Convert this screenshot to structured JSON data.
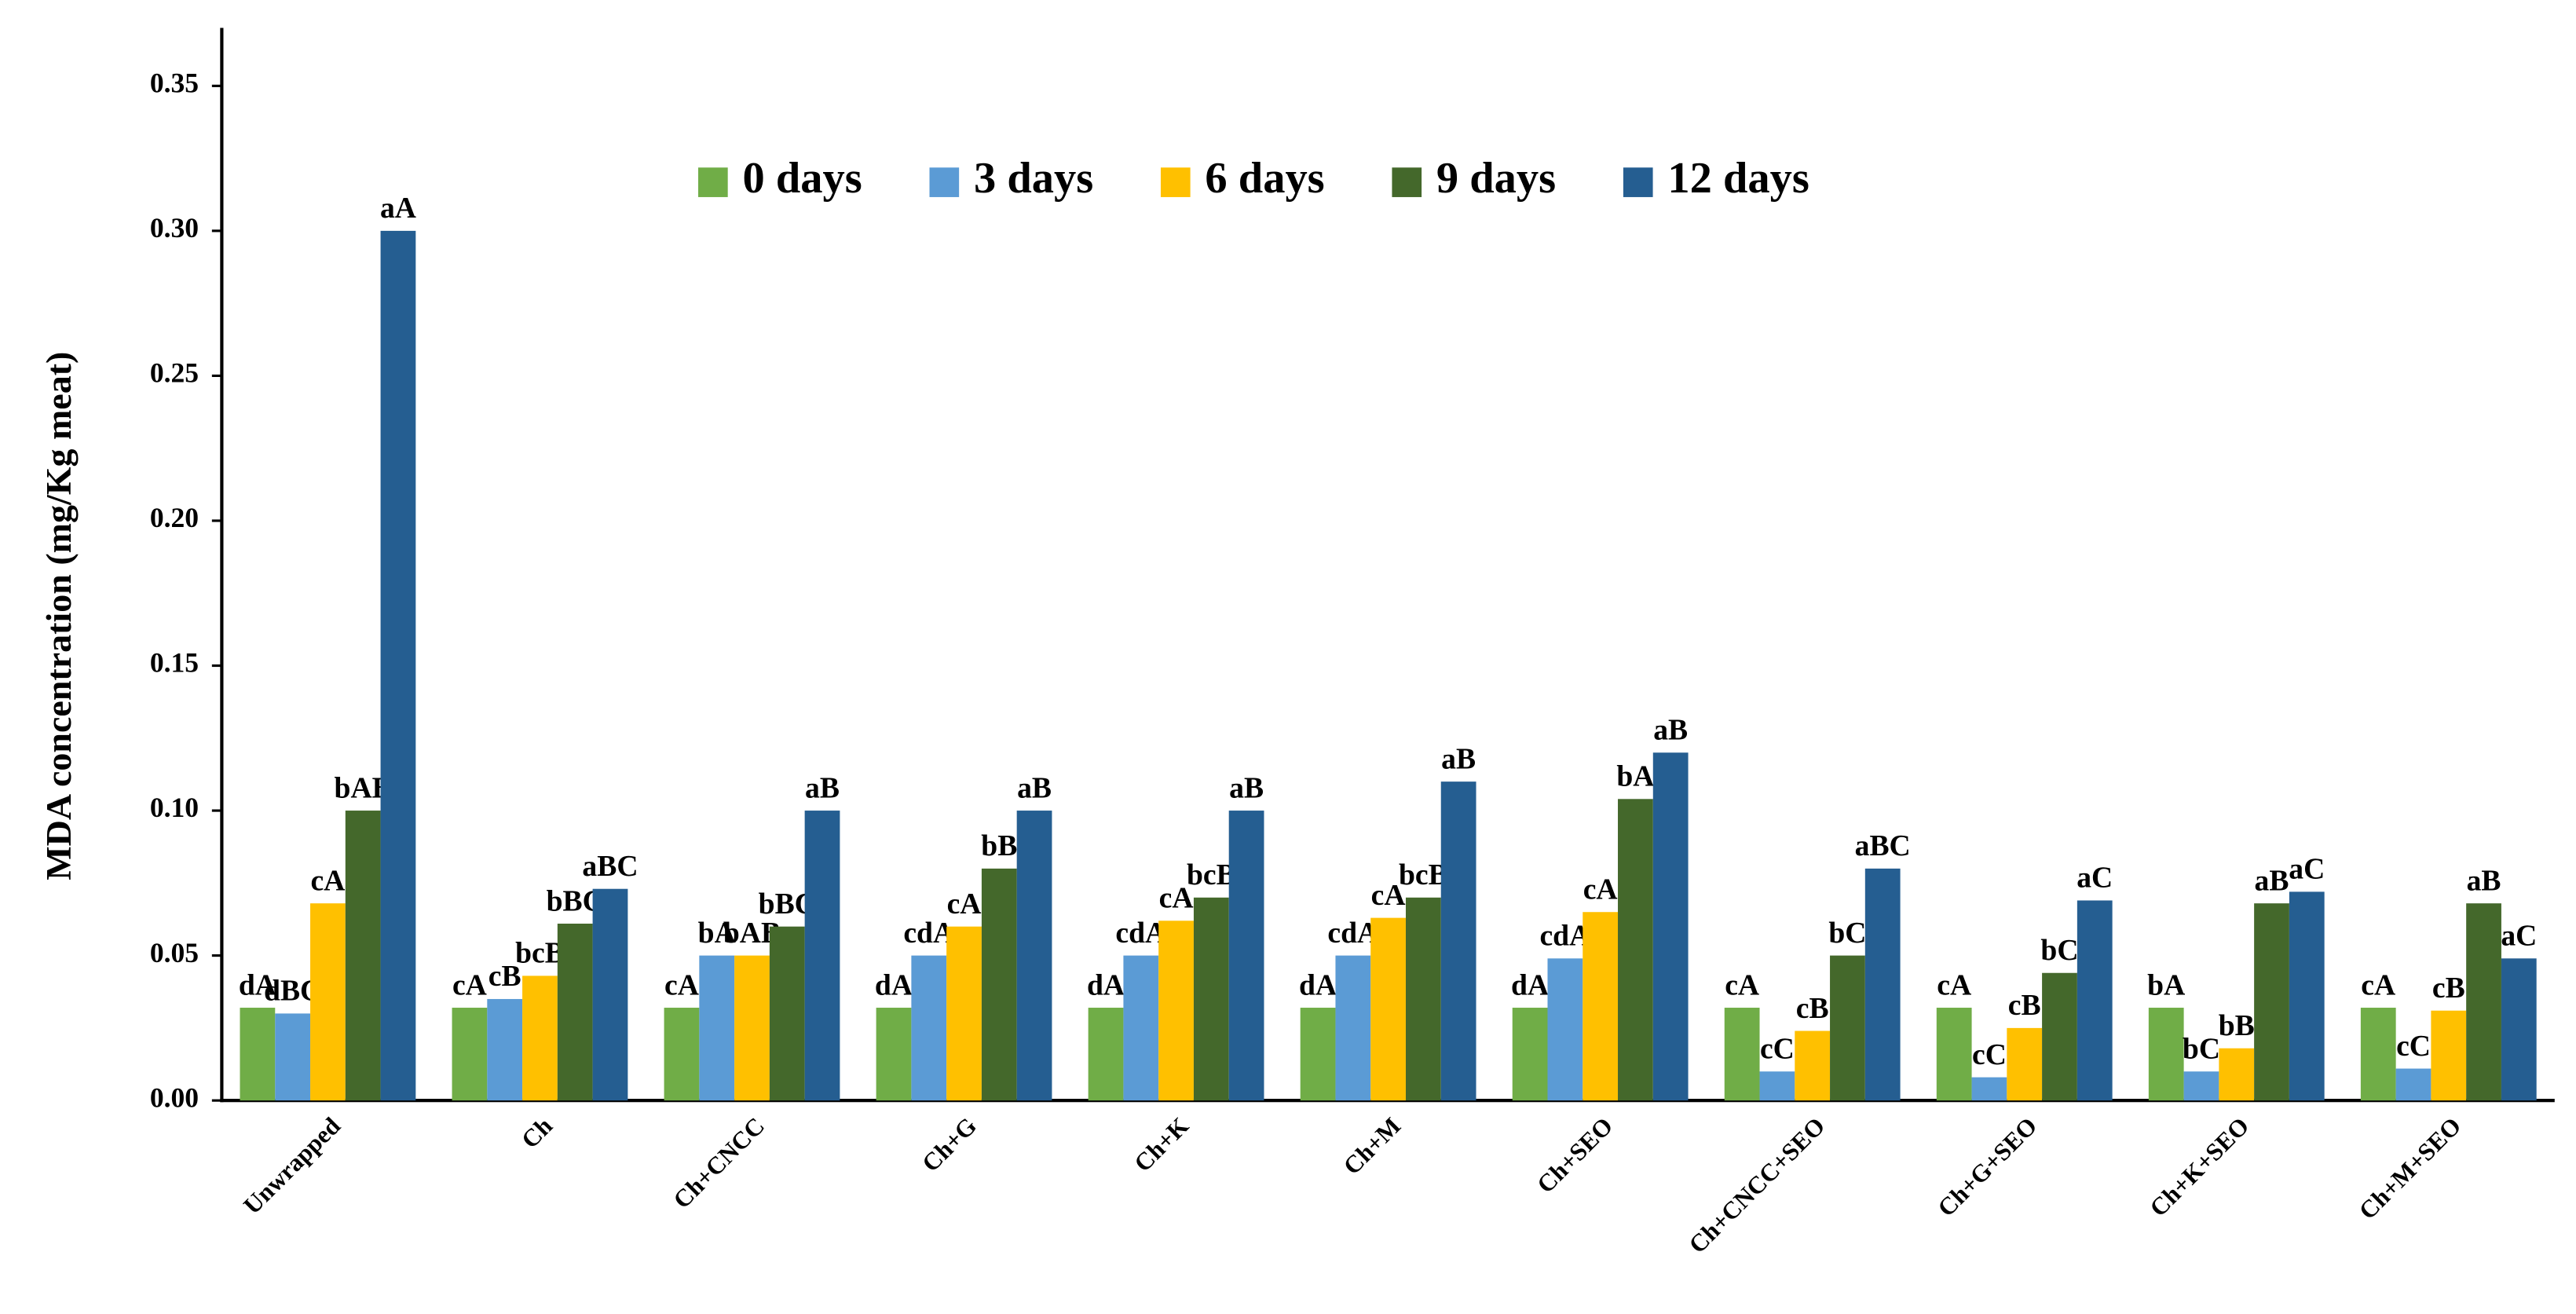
{
  "chart_data": {
    "type": "bar",
    "y_label": "MDA concentration (mg/Kg meat)",
    "categories": [
      "Unwrapped",
      "Ch",
      "Ch+CNCC",
      "Ch+G",
      "Ch+K",
      "Ch+M",
      "Ch+SEO",
      "Ch+CNCC+SEO",
      "Ch+G+SEO",
      "Ch+K+SEO",
      "Ch+M+SEO"
    ],
    "series": [
      {
        "name": "0 days",
        "color": "#70ad47",
        "values": [
          0.032,
          0.032,
          0.032,
          0.032,
          0.032,
          0.032,
          0.032,
          0.032,
          0.032,
          0.032,
          0.032
        ],
        "labels": [
          "dA",
          "cA",
          "cA",
          "dA",
          "dA",
          "dA",
          "dA",
          "cA",
          "cA",
          "bA",
          "cA"
        ]
      },
      {
        "name": "3 days",
        "color": "#5b9bd5",
        "values": [
          0.03,
          0.035,
          0.05,
          0.05,
          0.05,
          0.05,
          0.049,
          0.01,
          0.008,
          0.01,
          0.011
        ],
        "labels": [
          "dBC",
          "cB",
          "bA",
          "cdA",
          "cdA",
          "cdA",
          "cdA",
          "cC",
          "cC",
          "bC",
          "cC"
        ]
      },
      {
        "name": "6 days",
        "color": "#ffc000",
        "values": [
          0.068,
          0.043,
          0.05,
          0.06,
          0.062,
          0.063,
          0.065,
          0.024,
          0.025,
          0.018,
          0.031
        ],
        "labels": [
          "cA",
          "bcB",
          "bAB",
          "cA",
          "cA",
          "cA",
          "cA",
          "cB",
          "cB",
          "bB",
          "cB"
        ]
      },
      {
        "name": "9 days",
        "color": "#44682b",
        "values": [
          0.1,
          0.061,
          0.06,
          0.08,
          0.07,
          0.07,
          0.104,
          0.05,
          0.044,
          0.068,
          0.068
        ],
        "labels": [
          "bAB",
          "bBC",
          "bBC",
          "bB",
          "bcB",
          "bcB",
          "bA",
          "bC",
          "bC",
          "aB",
          "aB"
        ]
      },
      {
        "name": "12 days",
        "color": "#255e91",
        "values": [
          0.3,
          0.073,
          0.1,
          0.1,
          0.1,
          0.11,
          0.12,
          0.08,
          0.069,
          0.072,
          0.049
        ],
        "labels": [
          "aA",
          "aBC",
          "aB",
          "aB",
          "aB",
          "aB",
          "aB",
          "aBC",
          "aC",
          "aC",
          "aC"
        ]
      }
    ],
    "ylim": [
      0,
      0.37
    ],
    "yticks": [
      {
        "value": 0,
        "label": "0.00"
      },
      0.05,
      {
        "value": 0.1,
        "label": "0.10"
      },
      0.15,
      {
        "value": 0.2,
        "label": "0.20"
      },
      0.25,
      {
        "value": 0.3,
        "label": "0.30"
      },
      0.35
    ],
    "grid": false,
    "legend": "top"
  }
}
